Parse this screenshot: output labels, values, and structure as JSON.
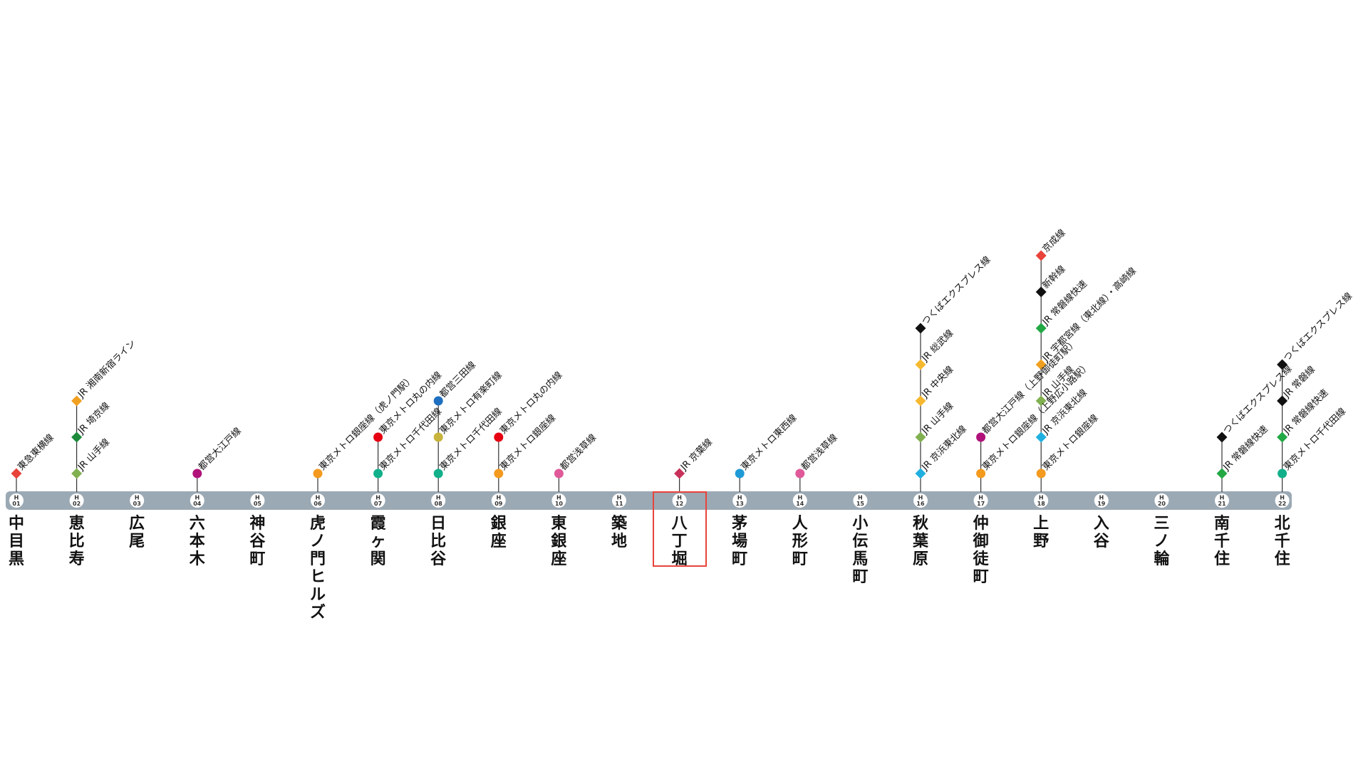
{
  "line": {
    "color": "#9ba9b4",
    "highlight_color": "#e8433a",
    "highlighted_station": "H12"
  },
  "stations": [
    {
      "code": "H01",
      "num": "01",
      "name": "中目黒",
      "transfers": [
        {
          "label": "東急東横線",
          "color": "#e8433a",
          "shape": "diamond"
        }
      ]
    },
    {
      "code": "H02",
      "num": "02",
      "name": "恵比寿",
      "transfers": [
        {
          "label": "JR 山手線",
          "color": "#80b050",
          "shape": "diamond"
        },
        {
          "label": "JR 埼京線",
          "color": "#1d8a3c",
          "shape": "diamond"
        },
        {
          "label": "JR 湘南新宿ライン",
          "color": "#f0a020",
          "shape": "diamond"
        }
      ]
    },
    {
      "code": "H03",
      "num": "03",
      "name": "広尾",
      "transfers": []
    },
    {
      "code": "H04",
      "num": "04",
      "name": "六本木",
      "transfers": [
        {
          "label": "都営大江戸線",
          "color": "#b0127a",
          "shape": "circle"
        }
      ]
    },
    {
      "code": "H05",
      "num": "05",
      "name": "神谷町",
      "transfers": []
    },
    {
      "code": "H06",
      "num": "06",
      "name": "虎ノ門ヒルズ",
      "transfers": [
        {
          "label": "東京メトロ銀座線（虎ノ門駅）",
          "color": "#f39a1f",
          "shape": "circle"
        }
      ]
    },
    {
      "code": "H07",
      "num": "07",
      "name": "霞ヶ関",
      "transfers": [
        {
          "label": "東京メトロ千代田線",
          "color": "#12b08a",
          "shape": "circle"
        },
        {
          "label": "東京メトロ丸の内線",
          "color": "#e60012",
          "shape": "circle"
        }
      ]
    },
    {
      "code": "H08",
      "num": "08",
      "name": "日比谷",
      "transfers": [
        {
          "label": "東京メトロ千代田線",
          "color": "#12b08a",
          "shape": "circle"
        },
        {
          "label": "東京メトロ有楽町線",
          "color": "#c8b43c",
          "shape": "circle"
        },
        {
          "label": "都営三田線",
          "color": "#1e6fbf",
          "shape": "circle"
        }
      ]
    },
    {
      "code": "H09",
      "num": "09",
      "name": "銀座",
      "transfers": [
        {
          "label": "東京メトロ銀座線",
          "color": "#f39a1f",
          "shape": "circle"
        },
        {
          "label": "東京メトロ丸の内線",
          "color": "#e60012",
          "shape": "circle"
        }
      ]
    },
    {
      "code": "H10",
      "num": "10",
      "name": "東銀座",
      "transfers": [
        {
          "label": "都営浅草線",
          "color": "#e05a9a",
          "shape": "circle"
        }
      ]
    },
    {
      "code": "H11",
      "num": "11",
      "name": "築地",
      "transfers": []
    },
    {
      "code": "H12",
      "num": "12",
      "name": "八丁堀",
      "transfers": [
        {
          "label": "JR 京葉線",
          "color": "#c8325a",
          "shape": "diamond"
        }
      ]
    },
    {
      "code": "H13",
      "num": "13",
      "name": "茅場町",
      "transfers": [
        {
          "label": "東京メトロ東西線",
          "color": "#1e9ad6",
          "shape": "circle"
        }
      ]
    },
    {
      "code": "H14",
      "num": "14",
      "name": "人形町",
      "transfers": [
        {
          "label": "都営浅草線",
          "color": "#e05a9a",
          "shape": "circle"
        }
      ]
    },
    {
      "code": "H15",
      "num": "15",
      "name": "小伝馬町",
      "transfers": []
    },
    {
      "code": "H16",
      "num": "16",
      "name": "秋葉原",
      "transfers": [
        {
          "label": "JR 京浜東北線",
          "color": "#20b0e0",
          "shape": "diamond"
        },
        {
          "label": "JR 山手線",
          "color": "#80b050",
          "shape": "diamond"
        },
        {
          "label": "JR 中央線",
          "color": "#f5b82e",
          "shape": "diamond"
        },
        {
          "label": "JR 総武線",
          "color": "#f5b82e",
          "shape": "diamond"
        },
        {
          "label": "つくばエクスプレス線",
          "color": "#111111",
          "shape": "diamond"
        }
      ]
    },
    {
      "code": "H17",
      "num": "17",
      "name": "仲御徒町",
      "transfers": [
        {
          "label": "東京メトロ銀座線（上野広小路駅）",
          "color": "#f39a1f",
          "shape": "circle"
        },
        {
          "label": "都営大江戸線（上野御徒町駅）",
          "color": "#b0127a",
          "shape": "circle"
        }
      ]
    },
    {
      "code": "H18",
      "num": "18",
      "name": "上野",
      "transfers": [
        {
          "label": "東京メトロ銀座線",
          "color": "#f39a1f",
          "shape": "circle"
        },
        {
          "label": "JR 京浜東北線",
          "color": "#20b0e0",
          "shape": "diamond"
        },
        {
          "label": "JR 山手線",
          "color": "#80b050",
          "shape": "diamond"
        },
        {
          "label": "JR 宇都宮線（東北線）・高崎線",
          "color": "#f0a020",
          "shape": "diamond"
        },
        {
          "label": "JR 常磐線快速",
          "color": "#22a844",
          "shape": "diamond"
        },
        {
          "label": "新幹線",
          "color": "#111111",
          "shape": "diamond"
        },
        {
          "label": "京成線",
          "color": "#e8433a",
          "shape": "diamond"
        }
      ]
    },
    {
      "code": "H19",
      "num": "19",
      "name": "入谷",
      "transfers": []
    },
    {
      "code": "H20",
      "num": "20",
      "name": "三ノ輪",
      "transfers": []
    },
    {
      "code": "H21",
      "num": "21",
      "name": "南千住",
      "transfers": [
        {
          "label": "JR 常磐線快速",
          "color": "#22a844",
          "shape": "diamond"
        },
        {
          "label": "つくばエクスプレス線",
          "color": "#111111",
          "shape": "diamond"
        }
      ]
    },
    {
      "code": "H22",
      "num": "22",
      "name": "北千住",
      "transfers": [
        {
          "label": "東京メトロ千代田線",
          "color": "#12b08a",
          "shape": "circle"
        },
        {
          "label": "JR 常磐線快速",
          "color": "#22a844",
          "shape": "diamond"
        },
        {
          "label": "JR 常磐線",
          "color": "#111111",
          "shape": "diamond"
        },
        {
          "label": "つくばエクスプレス線",
          "color": "#111111",
          "shape": "diamond"
        }
      ]
    }
  ]
}
